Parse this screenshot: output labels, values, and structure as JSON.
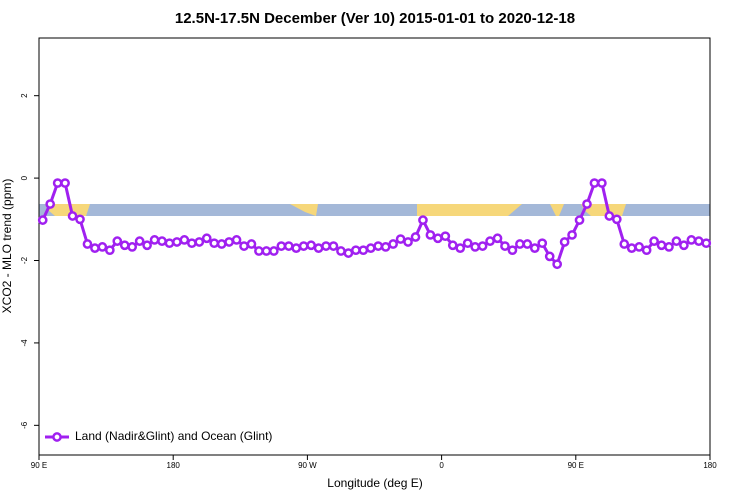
{
  "chart_data": {
    "type": "line",
    "title": "12.5N-17.5N December (Ver 10)   2015-01-01 to 2020-12-18",
    "x_label": "Longitude (deg E)",
    "y_label": "XCO2 - MLO trend (ppm)",
    "xlim": [
      90,
      540
    ],
    "xticks": [
      {
        "value": 90,
        "label": "90 E"
      },
      {
        "value": 180,
        "label": "180"
      },
      {
        "value": 270,
        "label": "90 W"
      },
      {
        "value": 360,
        "label": "0"
      },
      {
        "value": 450,
        "label": "90 E"
      },
      {
        "value": 540,
        "label": "180"
      }
    ],
    "ylim": [
      -6.72,
      3.4
    ],
    "yticks": [
      2,
      0,
      -2,
      -4,
      -6
    ],
    "legend": "bottomleft",
    "x": [
      92.5,
      97.5,
      102.5,
      107.5,
      112.5,
      117.5,
      122.5,
      127.5,
      132.5,
      137.5,
      142.5,
      147.5,
      152.5,
      157.5,
      162.5,
      167.5,
      172.5,
      177.5,
      182.5,
      187.5,
      192.5,
      197.5,
      202.5,
      207.5,
      212.5,
      217.5,
      222.5,
      227.5,
      232.5,
      237.5,
      242.5,
      247.5,
      252.5,
      257.5,
      262.5,
      267.5,
      272.5,
      277.5,
      282.5,
      287.5,
      292.5,
      297.5,
      302.5,
      307.5,
      312.5,
      317.5,
      322.5,
      327.5,
      332.5,
      337.5,
      342.5,
      347.5,
      352.5,
      357.5,
      362.5,
      367.5,
      372.5,
      377.5,
      382.5,
      387.5,
      392.5,
      397.5,
      402.5,
      407.5,
      412.5,
      417.5,
      422.5,
      427.5,
      432.5,
      437.5,
      442.5,
      447.5,
      452.5,
      457.5,
      462.5,
      467.5,
      472.5,
      477.5,
      482.5,
      487.5,
      492.5,
      497.5,
      502.5,
      507.5,
      512.5,
      517.5,
      522.5,
      527.5,
      532.5,
      537.5
    ],
    "series": [
      {
        "name": "Land (Nadir&Glint) and Ocean (Glint)",
        "color": "#a020f0",
        "values": [
          -1.02,
          -0.63,
          -0.12,
          -0.12,
          -0.92,
          -1.0,
          -1.6,
          -1.7,
          -1.67,
          -1.75,
          -1.53,
          -1.63,
          -1.67,
          -1.53,
          -1.63,
          -1.5,
          -1.53,
          -1.58,
          -1.55,
          -1.5,
          -1.58,
          -1.55,
          -1.46,
          -1.58,
          -1.6,
          -1.55,
          -1.5,
          -1.65,
          -1.6,
          -1.77,
          -1.77,
          -1.77,
          -1.65,
          -1.65,
          -1.7,
          -1.65,
          -1.63,
          -1.7,
          -1.65,
          -1.65,
          -1.77,
          -1.82,
          -1.75,
          -1.75,
          -1.7,
          -1.65,
          -1.67,
          -1.6,
          -1.48,
          -1.55,
          -1.43,
          -1.02,
          -1.38,
          -1.46,
          -1.41,
          -1.63,
          -1.7,
          -1.58,
          -1.67,
          -1.65,
          -1.53,
          -1.46,
          -1.65,
          -1.75,
          -1.6,
          -1.6,
          -1.7,
          -1.58,
          -1.9,
          -2.09,
          -1.55,
          -1.38,
          -1.02,
          -0.63,
          -0.12,
          -0.12,
          -0.92,
          -1.0,
          -1.6,
          -1.7,
          -1.67,
          -1.75,
          -1.53,
          -1.63,
          -1.67,
          -1.53,
          -1.63,
          -1.5,
          -1.53,
          -1.58
        ]
      }
    ]
  }
}
